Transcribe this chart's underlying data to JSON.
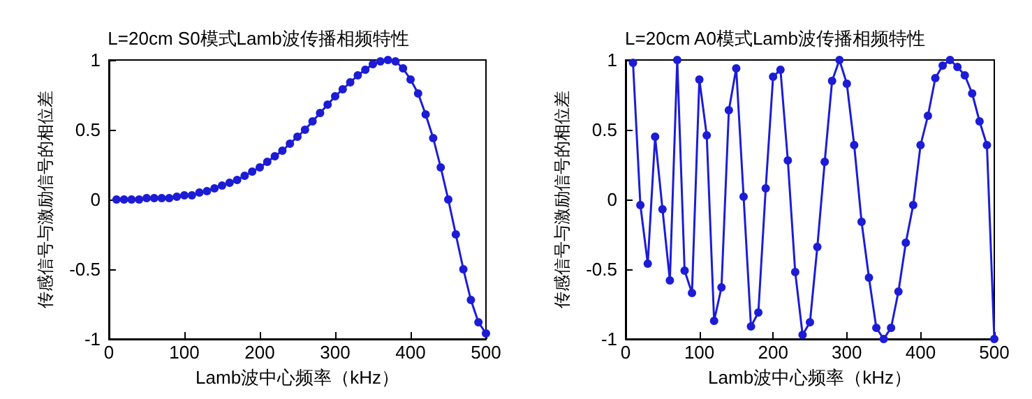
{
  "chart_data": [
    {
      "type": "line",
      "title": "L=20cm S0模式Lamb波传播相频特性",
      "xlabel": "Lamb波中心频率（kHz）",
      "ylabel": "传感信号与激励信号的相位差",
      "marker": "circle",
      "line_style": "solid",
      "x": [
        10,
        20,
        30,
        40,
        50,
        60,
        70,
        80,
        90,
        100,
        110,
        120,
        130,
        140,
        150,
        160,
        170,
        180,
        190,
        200,
        210,
        220,
        230,
        240,
        250,
        260,
        270,
        280,
        290,
        300,
        310,
        320,
        330,
        340,
        350,
        360,
        370,
        380,
        390,
        400,
        410,
        420,
        430,
        440,
        450,
        460,
        470,
        480,
        490,
        500
      ],
      "series": [
        {
          "color": "#1c1cd6",
          "values": [
            0,
            0,
            0,
            0,
            0.01,
            0.01,
            0.01,
            0.01,
            0.02,
            0.03,
            0.03,
            0.05,
            0.06,
            0.08,
            0.1,
            0.12,
            0.14,
            0.17,
            0.2,
            0.23,
            0.27,
            0.31,
            0.35,
            0.4,
            0.45,
            0.5,
            0.56,
            0.62,
            0.68,
            0.74,
            0.79,
            0.84,
            0.89,
            0.93,
            0.97,
            0.99,
            1.0,
            0.99,
            0.94,
            0.86,
            0.76,
            0.61,
            0.44,
            0.23,
            0.0,
            -0.25,
            -0.5,
            -0.72,
            -0.88,
            -0.96
          ]
        }
      ],
      "xlim": [
        0,
        500
      ],
      "xticks": [
        0,
        100,
        200,
        300,
        400,
        500
      ],
      "ylim": [
        -1,
        1
      ],
      "yticks": [
        -1,
        -0.5,
        0,
        0.5,
        1
      ]
    },
    {
      "type": "line",
      "title": "L=20cm A0模式Lamb波传播相频特性",
      "xlabel": "Lamb波中心频率（kHz）",
      "ylabel": "传感信号与激励信号的相位差",
      "marker": "circle",
      "line_style": "solid",
      "x": [
        10,
        20,
        30,
        40,
        50,
        60,
        70,
        80,
        90,
        100,
        110,
        120,
        130,
        140,
        150,
        160,
        170,
        180,
        190,
        200,
        210,
        220,
        230,
        240,
        250,
        260,
        270,
        280,
        290,
        300,
        310,
        320,
        330,
        340,
        350,
        360,
        370,
        380,
        390,
        400,
        410,
        420,
        430,
        440,
        450,
        460,
        470,
        480,
        490,
        500
      ],
      "series": [
        {
          "color": "#1c1cd6",
          "values": [
            0.98,
            -0.04,
            -0.46,
            0.45,
            -0.07,
            -0.58,
            1.0,
            -0.51,
            -0.67,
            0.86,
            0.46,
            -0.87,
            -0.63,
            0.64,
            0.94,
            0.02,
            -0.91,
            -0.81,
            0.08,
            0.88,
            0.93,
            0.28,
            -0.52,
            -0.97,
            -0.88,
            -0.34,
            0.27,
            0.85,
            1.0,
            0.83,
            0.39,
            -0.16,
            -0.56,
            -0.92,
            -1.0,
            -0.92,
            -0.66,
            -0.31,
            -0.04,
            0.39,
            0.6,
            0.87,
            0.96,
            1.0,
            0.95,
            0.89,
            0.76,
            0.56,
            0.39,
            -1.0
          ]
        }
      ],
      "xlim": [
        0,
        500
      ],
      "xticks": [
        0,
        100,
        200,
        300,
        400,
        500
      ],
      "ylim": [
        -1,
        1
      ],
      "yticks": [
        -1,
        -0.5,
        0,
        0.5,
        1
      ]
    }
  ]
}
